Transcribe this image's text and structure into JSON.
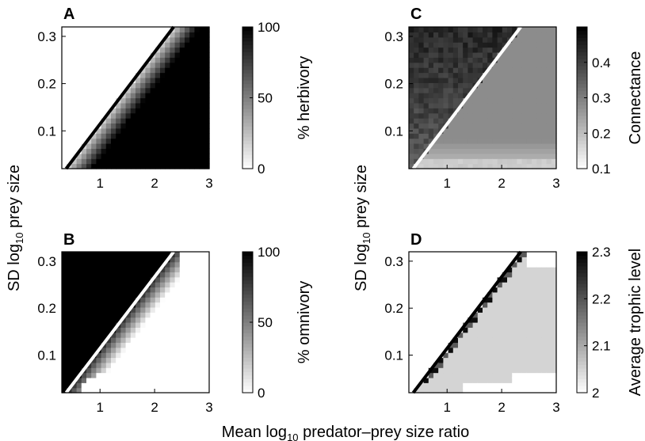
{
  "figure": {
    "xlabel_prefix": "Mean log",
    "xlabel_sub": "10",
    "xlabel_suffix": " predator–prey size ratio",
    "ylabel_prefix": "SD log",
    "ylabel_sub": "10",
    "ylabel_suffix": " prey size"
  },
  "chart_data": [
    {
      "panel": "A",
      "type": "heatmap",
      "x_ticks": [
        "1",
        "2",
        "3"
      ],
      "y_ticks": [
        "0.1",
        "0.2",
        "0.3"
      ],
      "xlim": [
        0.3,
        3.0
      ],
      "ylim": [
        0.02,
        0.32
      ],
      "boundary_line": {
        "x": [
          0.38,
          2.35
        ],
        "y": [
          0.02,
          0.32
        ],
        "color": "#000000"
      },
      "colorbar": {
        "label": "% herbivory",
        "ticks": [
          "0",
          "50",
          "100"
        ],
        "range": [
          0,
          100
        ]
      },
      "pattern": "white (0%) above the boundary line, grey transition band below the line, black (100%) toward the lower right"
    },
    {
      "panel": "B",
      "type": "heatmap",
      "x_ticks": [
        "1",
        "2",
        "3"
      ],
      "y_ticks": [
        "0.1",
        "0.2",
        "0.3"
      ],
      "xlim": [
        0.3,
        3.0
      ],
      "ylim": [
        0.02,
        0.32
      ],
      "boundary_line": {
        "x": [
          0.38,
          2.35
        ],
        "y": [
          0.02,
          0.32
        ],
        "color": "#ffffff"
      },
      "colorbar": {
        "label": "% omnivory",
        "ticks": [
          "0",
          "50",
          "100"
        ],
        "range": [
          0,
          100
        ]
      },
      "pattern": "black (100%) above the boundary line, grey transition band below the line, white (0%) toward the lower right"
    },
    {
      "panel": "C",
      "type": "heatmap",
      "x_ticks": [
        "1",
        "2",
        "3"
      ],
      "y_ticks": [
        "0.1",
        "0.2",
        "0.3"
      ],
      "xlim": [
        0.3,
        3.0
      ],
      "ylim": [
        0.02,
        0.32
      ],
      "boundary_line": {
        "x": [
          0.38,
          2.35
        ],
        "y": [
          0.02,
          0.32
        ],
        "color": "#ffffff"
      },
      "colorbar": {
        "label": "Connectance",
        "ticks": [
          "0.1",
          "0.2",
          "0.3",
          "0.4"
        ],
        "range": [
          0.1,
          0.5
        ]
      },
      "pattern": "high connectance (about 0.45) above the boundary line, about 0.28 below it, lighter near the bottom edge"
    },
    {
      "panel": "D",
      "type": "heatmap",
      "x_ticks": [
        "1",
        "2",
        "3"
      ],
      "y_ticks": [
        "0.1",
        "0.2",
        "0.3"
      ],
      "xlim": [
        0.3,
        3.0
      ],
      "ylim": [
        0.02,
        0.32
      ],
      "boundary_line": {
        "x": [
          0.38,
          2.35
        ],
        "y": [
          0.02,
          0.32
        ],
        "color": "#000000"
      },
      "colorbar": {
        "label": "Average trophic level",
        "ticks": [
          "2",
          "2.1",
          "2.2",
          "2.3"
        ],
        "range": [
          2.0,
          2.3
        ]
      },
      "pattern": "undefined (white) above the boundary line, about 2.0 below it, with a dark staircase (about 2.3) along the line"
    }
  ],
  "colors": {
    "background": "#ffffff",
    "axis": "#000000"
  }
}
